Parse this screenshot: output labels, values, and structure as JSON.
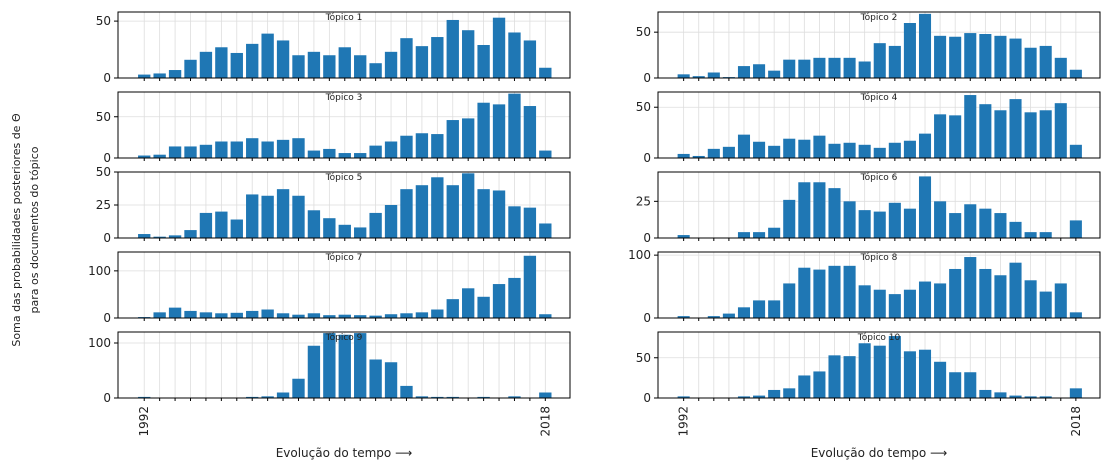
{
  "ylabel": [
    "Soma das probabilidades posteriores de Θ",
    "para os documentos do tópico"
  ],
  "chart_data": [
    {
      "type": "bar",
      "title": "Tópico 1",
      "color": "#1f77b4",
      "grid": true,
      "x": [
        1992,
        1993,
        1994,
        1995,
        1996,
        1997,
        1998,
        1999,
        2000,
        2001,
        2002,
        2003,
        2004,
        2005,
        2006,
        2007,
        2008,
        2009,
        2010,
        2011,
        2012,
        2013,
        2014,
        2015,
        2016,
        2017,
        2018
      ],
      "values": [
        3,
        4,
        7,
        16,
        23,
        27,
        22,
        30,
        39,
        33,
        20,
        23,
        20,
        27,
        20,
        13,
        23,
        35,
        28,
        36,
        51,
        42,
        29,
        53,
        40,
        33,
        9
      ],
      "xlim": [
        1990.3,
        2019.6
      ],
      "ylim": [
        0,
        58
      ],
      "yticks": [
        0,
        50
      ]
    },
    {
      "type": "bar",
      "title": "Tópico 2",
      "color": "#1f77b4",
      "grid": true,
      "x": [
        1992,
        1993,
        1994,
        1995,
        1996,
        1997,
        1998,
        1999,
        2000,
        2001,
        2002,
        2003,
        2004,
        2005,
        2006,
        2007,
        2008,
        2009,
        2010,
        2011,
        2012,
        2013,
        2014,
        2015,
        2016,
        2017,
        2018
      ],
      "values": [
        4,
        2,
        6,
        1,
        13,
        15,
        8,
        20,
        20,
        22,
        22,
        22,
        18,
        38,
        35,
        60,
        70,
        46,
        45,
        49,
        48,
        46,
        43,
        33,
        35,
        22,
        9
      ],
      "xlim": [
        1990.3,
        2019.6
      ],
      "ylim": [
        0,
        72
      ],
      "yticks": [
        0,
        50
      ]
    },
    {
      "type": "bar",
      "title": "Tópico 3",
      "color": "#1f77b4",
      "grid": true,
      "x": [
        1992,
        1993,
        1994,
        1995,
        1996,
        1997,
        1998,
        1999,
        2000,
        2001,
        2002,
        2003,
        2004,
        2005,
        2006,
        2007,
        2008,
        2009,
        2010,
        2011,
        2012,
        2013,
        2014,
        2015,
        2016,
        2017,
        2018
      ],
      "values": [
        3,
        4,
        14,
        14,
        16,
        20,
        20,
        24,
        20,
        22,
        24,
        9,
        11,
        6,
        6,
        15,
        20,
        27,
        30,
        29,
        46,
        48,
        67,
        65,
        78,
        63,
        9
      ],
      "xlim": [
        1990.3,
        2019.6
      ],
      "ylim": [
        0,
        80
      ],
      "yticks": [
        0,
        50
      ]
    },
    {
      "type": "bar",
      "title": "Tópico 4",
      "color": "#1f77b4",
      "grid": true,
      "x": [
        1992,
        1993,
        1994,
        1995,
        1996,
        1997,
        1998,
        1999,
        2000,
        2001,
        2002,
        2003,
        2004,
        2005,
        2006,
        2007,
        2008,
        2009,
        2010,
        2011,
        2012,
        2013,
        2014,
        2015,
        2016,
        2017,
        2018
      ],
      "values": [
        4,
        2,
        9,
        11,
        23,
        16,
        12,
        19,
        18,
        22,
        14,
        15,
        13,
        10,
        15,
        17,
        24,
        43,
        42,
        62,
        53,
        47,
        58,
        45,
        47,
        54,
        13
      ],
      "xlim": [
        1990.3,
        2019.6
      ],
      "ylim": [
        0,
        65
      ],
      "yticks": [
        0,
        50
      ]
    },
    {
      "type": "bar",
      "title": "Tópico 5",
      "color": "#1f77b4",
      "grid": true,
      "x": [
        1992,
        1993,
        1994,
        1995,
        1996,
        1997,
        1998,
        1999,
        2000,
        2001,
        2002,
        2003,
        2004,
        2005,
        2006,
        2007,
        2008,
        2009,
        2010,
        2011,
        2012,
        2013,
        2014,
        2015,
        2016,
        2017,
        2018
      ],
      "values": [
        3,
        1,
        2,
        6,
        19,
        20,
        14,
        33,
        32,
        37,
        32,
        21,
        15,
        10,
        8,
        19,
        25,
        37,
        40,
        46,
        40,
        49,
        37,
        36,
        24,
        23,
        11
      ],
      "xlim": [
        1990.3,
        2019.6
      ],
      "ylim": [
        0,
        50
      ],
      "yticks": [
        0,
        25,
        50
      ]
    },
    {
      "type": "bar",
      "title": "Tópico 6",
      "color": "#1f77b4",
      "grid": true,
      "x": [
        1992,
        1993,
        1994,
        1995,
        1996,
        1997,
        1998,
        1999,
        2000,
        2001,
        2002,
        2003,
        2004,
        2005,
        2006,
        2007,
        2008,
        2009,
        2010,
        2011,
        2012,
        2013,
        2014,
        2015,
        2016,
        2017,
        2018
      ],
      "values": [
        2,
        0,
        0,
        0,
        4,
        4,
        7,
        26,
        38,
        38,
        34,
        25,
        19,
        18,
        24,
        20,
        42,
        25,
        17,
        23,
        20,
        17,
        11,
        4,
        4,
        0,
        12
      ],
      "xlim": [
        1990.3,
        2019.6
      ],
      "ylim": [
        0,
        45
      ],
      "yticks": [
        0,
        25
      ]
    },
    {
      "type": "bar",
      "title": "Tópico 7",
      "color": "#1f77b4",
      "grid": true,
      "x": [
        1992,
        1993,
        1994,
        1995,
        1996,
        1997,
        1998,
        1999,
        2000,
        2001,
        2002,
        2003,
        2004,
        2005,
        2006,
        2007,
        2008,
        2009,
        2010,
        2011,
        2012,
        2013,
        2014,
        2015,
        2016,
        2017,
        2018
      ],
      "values": [
        2,
        12,
        22,
        15,
        12,
        10,
        11,
        15,
        18,
        10,
        7,
        10,
        6,
        7,
        6,
        5,
        8,
        10,
        12,
        18,
        40,
        63,
        45,
        72,
        85,
        132,
        8
      ],
      "xlim": [
        1990.3,
        2019.6
      ],
      "ylim": [
        0,
        140
      ],
      "yticks": [
        0,
        100
      ]
    },
    {
      "type": "bar",
      "title": "Tópico 8",
      "color": "#1f77b4",
      "grid": true,
      "x": [
        1992,
        1993,
        1994,
        1995,
        1996,
        1997,
        1998,
        1999,
        2000,
        2001,
        2002,
        2003,
        2004,
        2005,
        2006,
        2007,
        2008,
        2009,
        2010,
        2011,
        2012,
        2013,
        2014,
        2015,
        2016,
        2017,
        2018
      ],
      "values": [
        3,
        0,
        3,
        7,
        17,
        28,
        28,
        55,
        80,
        77,
        83,
        83,
        52,
        45,
        38,
        45,
        58,
        55,
        78,
        97,
        78,
        68,
        88,
        60,
        42,
        55,
        9
      ],
      "xlim": [
        1990.3,
        2019.6
      ],
      "ylim": [
        0,
        105
      ],
      "yticks": [
        0,
        100
      ]
    },
    {
      "type": "bar",
      "title": "Tópico 9",
      "color": "#1f77b4",
      "grid": true,
      "x": [
        1992,
        1993,
        1994,
        1995,
        1996,
        1997,
        1998,
        1999,
        2000,
        2001,
        2002,
        2003,
        2004,
        2005,
        2006,
        2007,
        2008,
        2009,
        2010,
        2011,
        2012,
        2013,
        2014,
        2015,
        2016,
        2017,
        2018
      ],
      "values": [
        2,
        0,
        0,
        0,
        0,
        0,
        0,
        2,
        3,
        10,
        35,
        95,
        118,
        115,
        118,
        70,
        65,
        22,
        3,
        2,
        2,
        0,
        2,
        0,
        3,
        0,
        10
      ],
      "xlim": [
        1990.3,
        2019.6
      ],
      "ylim": [
        0,
        120
      ],
      "yticks": [
        0,
        100
      ],
      "xticks": [
        1992,
        2018
      ],
      "xlabel": "Evolução do tempo ⟶"
    },
    {
      "type": "bar",
      "title": "Tópico 10",
      "color": "#1f77b4",
      "grid": true,
      "x": [
        1992,
        1993,
        1994,
        1995,
        1996,
        1997,
        1998,
        1999,
        2000,
        2001,
        2002,
        2003,
        2004,
        2005,
        2006,
        2007,
        2008,
        2009,
        2010,
        2011,
        2012,
        2013,
        2014,
        2015,
        2016,
        2017,
        2018
      ],
      "values": [
        2,
        0,
        0,
        0,
        2,
        3,
        10,
        12,
        28,
        33,
        53,
        52,
        68,
        65,
        77,
        58,
        60,
        45,
        32,
        32,
        10,
        7,
        3,
        2,
        2,
        0,
        12
      ],
      "xlim": [
        1990.3,
        2019.6
      ],
      "ylim": [
        0,
        82
      ],
      "yticks": [
        0,
        50
      ],
      "xticks": [
        1992,
        2018
      ],
      "xlabel": "Evolução do tempo ⟶"
    }
  ]
}
